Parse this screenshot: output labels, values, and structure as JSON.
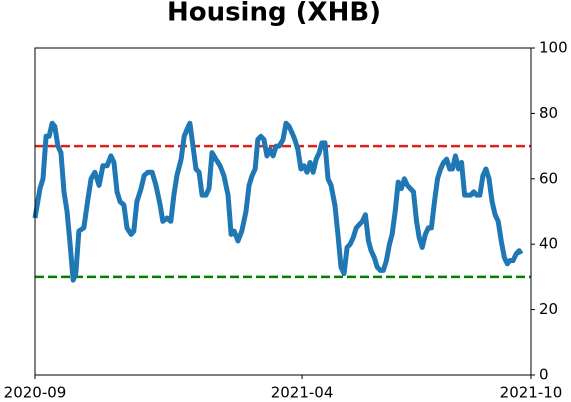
{
  "chart_data": {
    "type": "line",
    "title": "Housing (XHB)",
    "x": [
      0,
      0.13,
      0.21,
      0.29,
      0.37,
      0.45,
      0.52,
      0.6,
      0.68,
      0.76,
      0.84,
      0.92,
      1.0,
      1.07,
      1.15,
      1.28,
      1.39,
      1.47,
      1.57,
      1.68,
      1.78,
      1.89,
      1.99,
      2.07,
      2.15,
      2.23,
      2.33,
      2.41,
      2.52,
      2.59,
      2.67,
      2.78,
      2.86,
      2.96,
      3.07,
      3.17,
      3.28,
      3.35,
      3.46,
      3.56,
      3.64,
      3.72,
      3.83,
      3.91,
      3.98,
      4.06,
      4.14,
      4.22,
      4.3,
      4.38,
      4.48,
      4.56,
      4.64,
      4.74,
      4.85,
      4.95,
      5.06,
      5.14,
      5.22,
      5.32,
      5.42,
      5.53,
      5.61,
      5.69,
      5.77,
      5.84,
      5.92,
      6.0,
      6.08,
      6.16,
      6.24,
      6.32,
      6.4,
      6.5,
      6.58,
      6.66,
      6.74,
      6.81,
      6.89,
      6.97,
      7.05,
      7.13,
      7.21,
      7.29,
      7.37,
      7.45,
      7.52,
      7.6,
      7.68,
      7.76,
      7.86,
      7.94,
      8.02,
      8.1,
      8.18,
      8.26,
      8.34,
      8.42,
      8.5,
      8.58,
      8.66,
      8.74,
      8.81,
      8.89,
      8.97,
      9.05,
      9.13,
      9.21,
      9.29,
      9.36,
      9.44,
      9.52,
      9.6,
      9.68,
      9.76,
      9.84,
      9.92,
      10.0,
      10.07,
      10.15,
      10.23,
      10.31,
      10.39,
      10.47,
      10.55,
      10.63,
      10.71,
      10.79,
      10.87,
      10.94,
      11.02,
      11.1,
      11.18,
      11.26,
      11.34,
      11.42,
      11.5,
      11.58,
      11.66,
      11.74,
      11.82,
      11.9,
      11.98,
      12.06,
      12.14,
      12.22,
      12.3,
      12.38,
      12.45,
      12.53,
      12.61,
      12.69,
      12.74
    ],
    "series": [
      {
        "color": "#1f77b4",
        "values": [
          48,
          57,
          60,
          73,
          73,
          77,
          76,
          70,
          68,
          56,
          50,
          40,
          29,
          31,
          44,
          45,
          54,
          60,
          62,
          58,
          64,
          64,
          67,
          65,
          56,
          53,
          52,
          45,
          43,
          44,
          53,
          57,
          61,
          62,
          62,
          58,
          52,
          47,
          48,
          47,
          55,
          61,
          66,
          73,
          75,
          77,
          70,
          63,
          62,
          55,
          55,
          57,
          68,
          66,
          64,
          61,
          55,
          43,
          44,
          41,
          44,
          50,
          58,
          61,
          63,
          72,
          73,
          72,
          67,
          69,
          67,
          70,
          70,
          72,
          77,
          76,
          74,
          72,
          69,
          63,
          64,
          62,
          65,
          62,
          66,
          68,
          71,
          71,
          60,
          58,
          52,
          43,
          33,
          31,
          39,
          40,
          42,
          45,
          46,
          47,
          49,
          41,
          38,
          36,
          33,
          32,
          32,
          35,
          40,
          43,
          50,
          59,
          57,
          60,
          58,
          57,
          56,
          47,
          42,
          39,
          43,
          45,
          45,
          53,
          60,
          63,
          65,
          66,
          63,
          63,
          67,
          63,
          65,
          55,
          55,
          55,
          56,
          55,
          55,
          61,
          63,
          60,
          53,
          49,
          47,
          41,
          36,
          34,
          35,
          35,
          37,
          38,
          37
        ]
      }
    ],
    "xlim": [
      0,
      13
    ],
    "xticks": [
      {
        "value": 0,
        "label": "2020-09"
      },
      {
        "value": 7,
        "label": "2021-04"
      },
      {
        "value": 13,
        "label": "2021-10"
      }
    ],
    "ylim": [
      0,
      100
    ],
    "yticks": [
      0,
      20,
      40,
      60,
      80,
      100
    ],
    "y_axis_side": "right",
    "hlines": [
      {
        "value": 70,
        "color": "#e0201b"
      },
      {
        "value": 30,
        "color": "#008000"
      }
    ]
  }
}
